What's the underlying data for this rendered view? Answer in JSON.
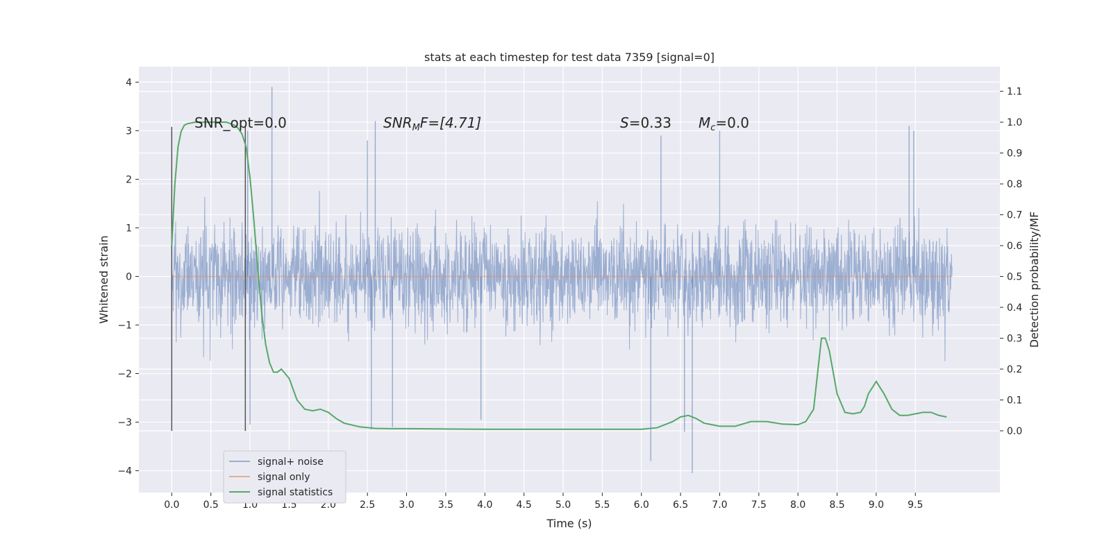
{
  "chart_data": {
    "type": "line",
    "title": "stats at each timestep for test data 7359 [signal=0]",
    "xlabel": "Time (s)",
    "ylabel": "Whitened strain",
    "ylabel_right": "Detection probability/MF",
    "xlim": [
      -0.42,
      10.58
    ],
    "ylim": [
      -4.45,
      4.32
    ],
    "ylim_right": [
      -0.2,
      1.18
    ],
    "x_ticks": [
      "0.0",
      "0.5",
      "1.0",
      "1.5",
      "2.0",
      "2.5",
      "3.0",
      "3.5",
      "4.0",
      "4.5",
      "5.0",
      "5.5",
      "6.0",
      "6.5",
      "7.0",
      "7.5",
      "8.0",
      "8.5",
      "9.0",
      "9.5"
    ],
    "y_ticks": [
      "4",
      "3",
      "2",
      "1",
      "0",
      "−1",
      "−2",
      "−3",
      "−4"
    ],
    "y_ticks_right": [
      "1.1",
      "1.0",
      "0.9",
      "0.8",
      "0.7",
      "0.6",
      "0.5",
      "0.4",
      "0.3",
      "0.2",
      "0.1",
      "0.0"
    ],
    "grid": true,
    "legend_position": "lower-left",
    "annotations": {
      "snr_opt": "SNR_opt=0.0",
      "snr_mf_sym": "SNR",
      "snr_mf_sub": "M",
      "snr_mf_rest": "F=[4.71]",
      "s_sym": "S",
      "s_rest": "=0.33",
      "mc_sym": "M",
      "mc_sub": "c",
      "mc_rest": "=0.0"
    },
    "vertical_lines": [
      0.0,
      0.94
    ],
    "noise_envelope": {
      "t_start": 0.0,
      "t_end": 9.97,
      "typical_min": -1.8,
      "typical_max": 1.8,
      "extreme_peaks": [
        {
          "x": 1.28,
          "y": 3.9
        },
        {
          "x": 0.97,
          "y": 3.0
        },
        {
          "x": 2.6,
          "y": 3.2
        },
        {
          "x": 7.0,
          "y": 3.0
        },
        {
          "x": 9.42,
          "y": 3.1
        },
        {
          "x": 6.25,
          "y": 2.9
        },
        {
          "x": 2.5,
          "y": 2.8
        },
        {
          "x": 9.48,
          "y": 3.0
        }
      ],
      "extreme_troughs": [
        {
          "x": 6.65,
          "y": -4.05
        },
        {
          "x": 6.12,
          "y": -3.8
        },
        {
          "x": 1.0,
          "y": -3.05
        },
        {
          "x": 2.55,
          "y": -3.15
        },
        {
          "x": 2.82,
          "y": -3.1
        },
        {
          "x": 3.95,
          "y": -2.95
        },
        {
          "x": 6.55,
          "y": -3.2
        }
      ],
      "color": "#4c72b0"
    },
    "series": [
      {
        "name": "signal+ noise",
        "color": "#4c72b0"
      },
      {
        "name": "signal only",
        "color": "#dd8452",
        "values": 0
      },
      {
        "name": "signal statistics",
        "color": "#55a868",
        "axis": "right",
        "x": [
          0.0,
          0.04,
          0.08,
          0.12,
          0.16,
          0.2,
          0.3,
          0.4,
          0.5,
          0.6,
          0.7,
          0.8,
          0.85,
          0.9,
          0.95,
          1.0,
          1.05,
          1.1,
          1.15,
          1.2,
          1.25,
          1.3,
          1.35,
          1.4,
          1.5,
          1.6,
          1.7,
          1.8,
          1.9,
          2.0,
          2.1,
          2.2,
          2.4,
          2.6,
          2.8,
          3.0,
          3.5,
          4.0,
          4.5,
          5.0,
          5.5,
          6.0,
          6.2,
          6.4,
          6.5,
          6.6,
          6.7,
          6.8,
          7.0,
          7.2,
          7.4,
          7.6,
          7.8,
          8.0,
          8.1,
          8.2,
          8.3,
          8.35,
          8.4,
          8.5,
          8.6,
          8.7,
          8.8,
          8.85,
          8.9,
          9.0,
          9.1,
          9.2,
          9.3,
          9.4,
          9.5,
          9.6,
          9.7,
          9.8,
          9.9
        ],
        "y": [
          0.6,
          0.8,
          0.92,
          0.97,
          0.99,
          0.995,
          1.0,
          1.0,
          1.0,
          1.0,
          1.0,
          0.99,
          0.98,
          0.96,
          0.92,
          0.82,
          0.68,
          0.52,
          0.38,
          0.28,
          0.22,
          0.19,
          0.19,
          0.2,
          0.17,
          0.1,
          0.07,
          0.065,
          0.07,
          0.06,
          0.04,
          0.025,
          0.013,
          0.008,
          0.007,
          0.007,
          0.006,
          0.005,
          0.005,
          0.005,
          0.005,
          0.005,
          0.01,
          0.03,
          0.045,
          0.05,
          0.04,
          0.025,
          0.015,
          0.015,
          0.03,
          0.03,
          0.022,
          0.02,
          0.03,
          0.07,
          0.3,
          0.3,
          0.26,
          0.12,
          0.06,
          0.055,
          0.06,
          0.08,
          0.12,
          0.16,
          0.12,
          0.07,
          0.05,
          0.05,
          0.055,
          0.06,
          0.06,
          0.05,
          0.045
        ]
      }
    ]
  }
}
